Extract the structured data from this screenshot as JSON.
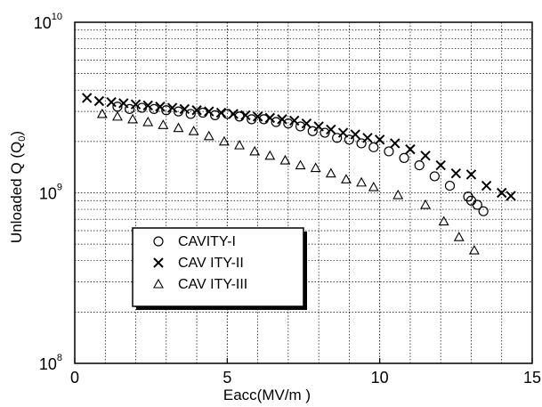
{
  "chart_data": {
    "type": "scatter",
    "xlabel": "Eacc(MV/m )",
    "ylabel": "Unloaded Q (Q0)",
    "ylabel_main": "Unloaded Q (Q",
    "ylabel_sub": "0",
    "ylabel_end": ")",
    "xlim": [
      0,
      15
    ],
    "ylim": [
      100000000,
      10000000000
    ],
    "yscale": "log",
    "grid": true,
    "legend_position": "lower-left",
    "x_ticks": [
      "0",
      "5",
      "10",
      "15"
    ],
    "y_ticks": [
      {
        "value": 100000000,
        "base": "10",
        "exp": "8"
      },
      {
        "value": 1000000000,
        "base": "10",
        "exp": "9"
      },
      {
        "value": 10000000000,
        "base": "10",
        "exp": "10"
      }
    ],
    "series": [
      {
        "name": "CAVITY-I",
        "marker": "circle",
        "points": [
          [
            1.4,
            3200000000.0
          ],
          [
            1.8,
            3100000000.0
          ],
          [
            2.2,
            3150000000.0
          ],
          [
            2.6,
            3100000000.0
          ],
          [
            3.0,
            3050000000.0
          ],
          [
            3.4,
            3000000000.0
          ],
          [
            3.8,
            2900000000.0
          ],
          [
            4.2,
            2950000000.0
          ],
          [
            4.6,
            2850000000.0
          ],
          [
            5.0,
            2900000000.0
          ],
          [
            5.4,
            2800000000.0
          ],
          [
            5.8,
            2700000000.0
          ],
          [
            6.2,
            2700000000.0
          ],
          [
            6.6,
            2600000000.0
          ],
          [
            7.0,
            2550000000.0
          ],
          [
            7.4,
            2450000000.0
          ],
          [
            7.8,
            2300000000.0
          ],
          [
            8.2,
            2250000000.0
          ],
          [
            8.6,
            2100000000.0
          ],
          [
            9.0,
            2050000000.0
          ],
          [
            9.4,
            1950000000.0
          ],
          [
            9.8,
            1850000000.0
          ],
          [
            10.3,
            1750000000.0
          ],
          [
            10.8,
            1600000000.0
          ],
          [
            11.3,
            1450000000.0
          ],
          [
            11.8,
            1250000000.0
          ],
          [
            12.3,
            1100000000.0
          ],
          [
            12.9,
            950000000.0
          ],
          [
            13.0,
            900000000.0
          ],
          [
            13.2,
            850000000.0
          ],
          [
            13.4,
            780000000.0
          ]
        ]
      },
      {
        "name": "CAVITY-II",
        "marker": "x",
        "points": [
          [
            0.4,
            3600000000.0
          ],
          [
            0.8,
            3450000000.0
          ],
          [
            1.2,
            3400000000.0
          ],
          [
            1.6,
            3350000000.0
          ],
          [
            2.0,
            3300000000.0
          ],
          [
            2.4,
            3250000000.0
          ],
          [
            2.8,
            3200000000.0
          ],
          [
            3.2,
            3150000000.0
          ],
          [
            3.6,
            3100000000.0
          ],
          [
            4.0,
            3050000000.0
          ],
          [
            4.4,
            3000000000.0
          ],
          [
            4.8,
            2950000000.0
          ],
          [
            5.2,
            2900000000.0
          ],
          [
            5.6,
            2850000000.0
          ],
          [
            6.0,
            2800000000.0
          ],
          [
            6.4,
            2750000000.0
          ],
          [
            6.8,
            2700000000.0
          ],
          [
            7.2,
            2650000000.0
          ],
          [
            7.6,
            2550000000.0
          ],
          [
            8.0,
            2450000000.0
          ],
          [
            8.4,
            2350000000.0
          ],
          [
            8.8,
            2250000000.0
          ],
          [
            9.2,
            2200000000.0
          ],
          [
            9.6,
            2100000000.0
          ],
          [
            10.0,
            2050000000.0
          ],
          [
            10.5,
            1950000000.0
          ],
          [
            11.0,
            1800000000.0
          ],
          [
            11.5,
            1650000000.0
          ],
          [
            12.0,
            1450000000.0
          ],
          [
            12.5,
            1300000000.0
          ],
          [
            13.0,
            1280000000.0
          ],
          [
            13.5,
            1100000000.0
          ],
          [
            14.0,
            1000000000.0
          ],
          [
            14.3,
            960000000.0
          ]
        ]
      },
      {
        "name": "CAVITY-III",
        "marker": "triangle",
        "points": [
          [
            0.9,
            2900000000.0
          ],
          [
            1.4,
            2800000000.0
          ],
          [
            1.9,
            2700000000.0
          ],
          [
            2.4,
            2600000000.0
          ],
          [
            2.9,
            2500000000.0
          ],
          [
            3.4,
            2400000000.0
          ],
          [
            3.9,
            2300000000.0
          ],
          [
            4.4,
            2150000000.0
          ],
          [
            4.9,
            2000000000.0
          ],
          [
            5.4,
            1900000000.0
          ],
          [
            5.9,
            1750000000.0
          ],
          [
            6.4,
            1650000000.0
          ],
          [
            6.9,
            1550000000.0
          ],
          [
            7.4,
            1450000000.0
          ],
          [
            7.9,
            1400000000.0
          ],
          [
            8.4,
            1300000000.0
          ],
          [
            8.9,
            1200000000.0
          ],
          [
            9.4,
            1150000000.0
          ],
          [
            9.8,
            1080000000.0
          ],
          [
            10.6,
            970000000.0
          ],
          [
            11.5,
            850000000.0
          ],
          [
            12.1,
            680000000.0
          ],
          [
            12.6,
            550000000.0
          ],
          [
            13.1,
            460000000.0
          ]
        ]
      }
    ],
    "legend": [
      {
        "label": "CAVITY-I",
        "marker": "circle"
      },
      {
        "label": "CAV ITY-II",
        "marker": "x"
      },
      {
        "label": "CAV ITY-III",
        "marker": "triangle"
      }
    ]
  }
}
